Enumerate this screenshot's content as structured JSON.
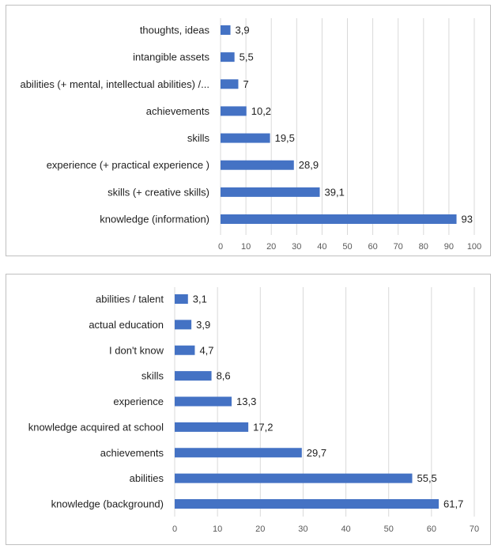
{
  "chart_data": [
    {
      "type": "bar",
      "orientation": "horizontal",
      "categories": [
        "thoughts, ideas",
        "intangible assets",
        "abilities (+ mental, intellectual abilities) /...",
        "achievements",
        "skills",
        "experience (+ practical experience )",
        "skills (+ creative skills)",
        "knowledge (information)"
      ],
      "values": [
        3.9,
        5.5,
        7,
        10.2,
        19.5,
        28.9,
        39.1,
        93
      ],
      "value_labels": [
        "3,9",
        "5,5",
        "7",
        "10,2",
        "19,5",
        "28,9",
        "39,1",
        "93"
      ],
      "xticks": [
        "0",
        "10",
        "20",
        "30",
        "40",
        "50",
        "60",
        "70",
        "80",
        "90",
        "100"
      ],
      "xlim": [
        0,
        100
      ],
      "grid": "vertical",
      "bar_color": "#4472c4",
      "title": "",
      "xlabel": "",
      "ylabel": ""
    },
    {
      "type": "bar",
      "orientation": "horizontal",
      "categories": [
        "abilities / talent",
        "actual education",
        "I don't know",
        "skills",
        "experience",
        "knowledge acquired at school",
        "achievements",
        "abilities",
        "knowledge (background)"
      ],
      "values": [
        3.1,
        3.9,
        4.7,
        8.6,
        13.3,
        17.2,
        29.7,
        55.5,
        61.7
      ],
      "value_labels": [
        "3,1",
        "3,9",
        "4,7",
        "8,6",
        "13,3",
        "17,2",
        "29,7",
        "55,5",
        "61,7"
      ],
      "xticks": [
        "0",
        "10",
        "20",
        "30",
        "40",
        "50",
        "60",
        "70"
      ],
      "xlim": [
        0,
        70
      ],
      "grid": "vertical",
      "bar_color": "#4472c4",
      "title": "",
      "xlabel": "",
      "ylabel": ""
    }
  ]
}
